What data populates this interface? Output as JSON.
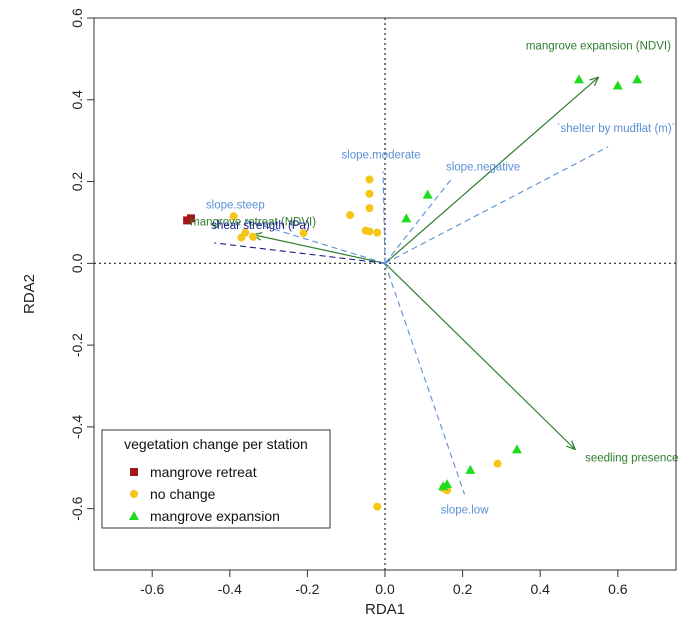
{
  "chart_data": {
    "type": "scatter",
    "title": "",
    "xlabel": "RDA1",
    "ylabel": "RDA2",
    "xlim": [
      -0.75,
      0.75
    ],
    "ylim": [
      -0.75,
      0.6
    ],
    "xticks": [
      -0.6,
      -0.4,
      -0.2,
      0.0,
      0.2,
      0.4,
      0.6
    ],
    "yticks": [
      -0.6,
      -0.4,
      -0.2,
      0.0,
      0.2,
      0.4,
      0.6
    ],
    "tick_labels_x": [
      "-0.6",
      "-0.4",
      "-0.2",
      "0.0",
      "0.2",
      "0.4",
      "0.6"
    ],
    "tick_labels_y": [
      "-0.6",
      "-0.4",
      "-0.2",
      "0.0",
      "0.2",
      "0.4",
      "0.6"
    ],
    "reference_lines": {
      "x": 0,
      "y": 0,
      "style": "dotted"
    },
    "colors": {
      "retreat": "#a01818",
      "nochange": "#f5c518",
      "expansion": "#1fdc1f",
      "vector_solid": "#2e7d2e",
      "vector_dashed": "#5b8fd6",
      "vector_shear": "#1a1a8c"
    },
    "series": [
      {
        "name": "mangrove retreat",
        "marker": "square",
        "color": "#a01818",
        "points": [
          [
            -0.51,
            0.105
          ],
          [
            -0.5,
            0.11
          ]
        ]
      },
      {
        "name": "no change",
        "marker": "circle",
        "color": "#f5c518",
        "points": [
          [
            -0.39,
            0.115
          ],
          [
            -0.37,
            0.063
          ],
          [
            -0.36,
            0.075
          ],
          [
            -0.34,
            0.065
          ],
          [
            -0.21,
            0.074
          ],
          [
            -0.09,
            0.118
          ],
          [
            -0.05,
            0.08
          ],
          [
            -0.04,
            0.078
          ],
          [
            -0.04,
            0.205
          ],
          [
            -0.04,
            0.17
          ],
          [
            -0.04,
            0.135
          ],
          [
            -0.02,
            0.075
          ],
          [
            -0.02,
            -0.595
          ],
          [
            0.15,
            -0.55
          ],
          [
            0.16,
            -0.555
          ],
          [
            0.29,
            -0.49
          ]
        ]
      },
      {
        "name": "mangrove expansion",
        "marker": "triangle",
        "color": "#1fdc1f",
        "points": [
          [
            0.055,
            0.11
          ],
          [
            0.11,
            0.168
          ],
          [
            0.15,
            -0.545
          ],
          [
            0.16,
            -0.54
          ],
          [
            0.22,
            -0.505
          ],
          [
            0.34,
            -0.455
          ],
          [
            0.5,
            0.45
          ],
          [
            0.6,
            0.435
          ],
          [
            0.65,
            0.45
          ]
        ]
      }
    ],
    "vectors": [
      {
        "label": "mangrove expansion (NDVI)",
        "end": [
          0.55,
          0.455
        ],
        "style": "solid",
        "color": "#2e7d2e"
      },
      {
        "label": "seedling presence (field)",
        "end": [
          0.49,
          -0.455
        ],
        "style": "solid",
        "color": "#2e7d2e"
      },
      {
        "label": "mangrove retreat (NDVI)",
        "end": [
          -0.34,
          0.07
        ],
        "style": "solid",
        "color": "#2e7d2e"
      },
      {
        "label": "shear strength (Pa)",
        "end": [
          -0.44,
          0.05
        ],
        "style": "dashed",
        "color": "#1a1a8c"
      },
      {
        "label": "slope.steep",
        "end": [
          -0.36,
          0.105
        ],
        "style": "dashed",
        "color": "#5b8fd6"
      },
      {
        "label": "slope.moderate",
        "end": [
          -0.005,
          0.225
        ],
        "style": "dashed",
        "color": "#5b8fd6"
      },
      {
        "label": "slope.negative",
        "end": [
          0.17,
          0.205
        ],
        "style": "dashed",
        "color": "#5b8fd6"
      },
      {
        "label": "`shelter by mudflat (m)`",
        "end": [
          0.575,
          0.285
        ],
        "style": "dashed",
        "color": "#5b8fd6"
      },
      {
        "label": "slope.low",
        "end": [
          0.205,
          -0.565
        ],
        "style": "dashed",
        "color": "#5b8fd6"
      }
    ],
    "legend": {
      "title": "vegetation change per station",
      "position": "bottom-left",
      "items": [
        "mangrove retreat",
        "no change",
        "mangrove expansion"
      ]
    }
  }
}
